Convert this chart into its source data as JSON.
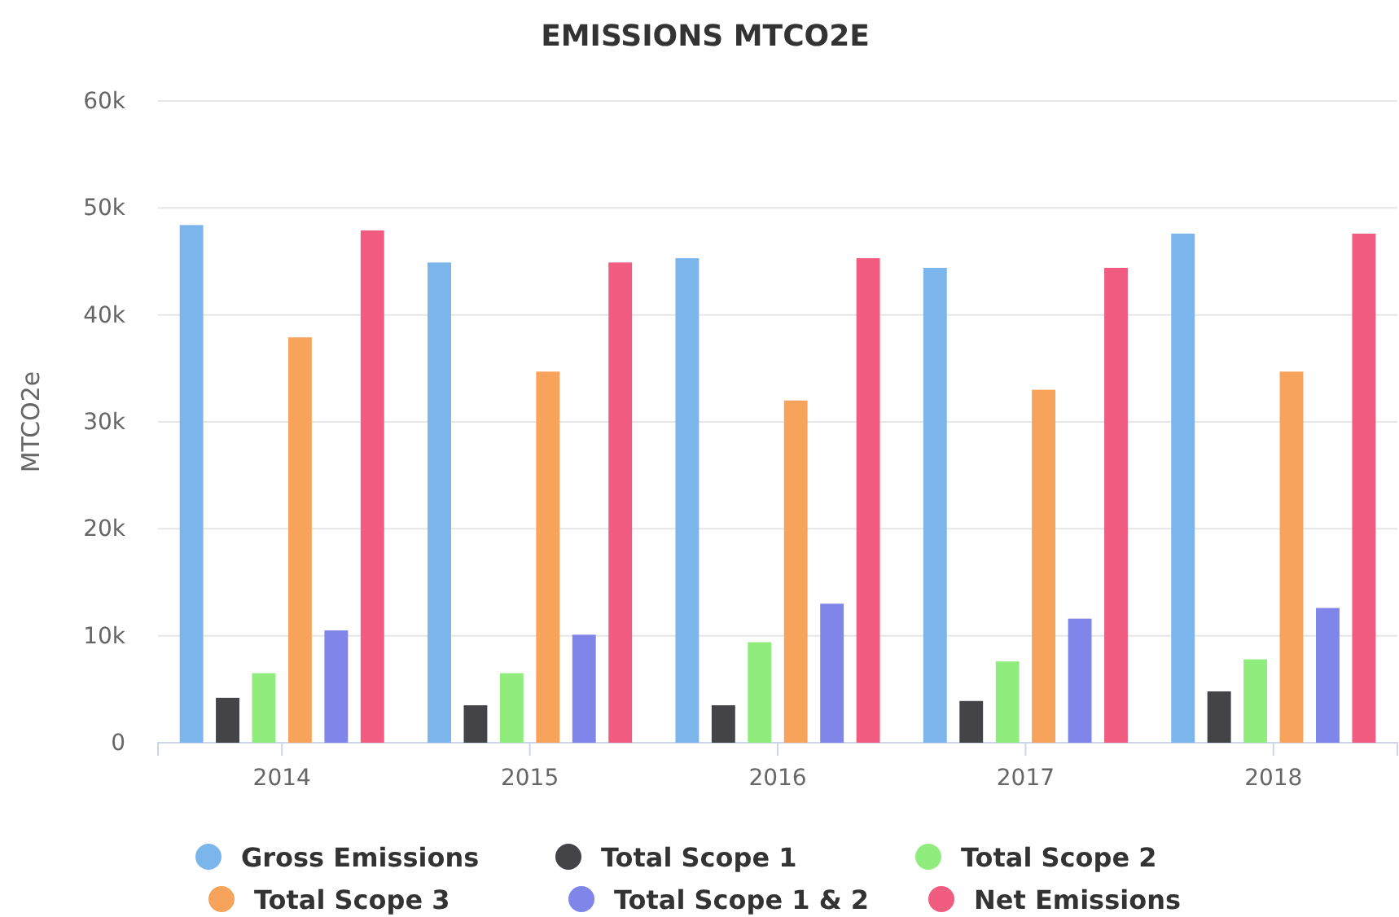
{
  "chart_data": {
    "type": "bar",
    "title": "EMISSIONS MTCO2E",
    "ylabel": "MTCO2e",
    "categories": [
      "2014",
      "2015",
      "2016",
      "2017",
      "2018"
    ],
    "series": [
      {
        "name": "Gross Emissions",
        "color": "#7cb5ec",
        "values": [
          48400,
          44900,
          45300,
          44400,
          47600
        ]
      },
      {
        "name": "Total Scope 1",
        "color": "#434348",
        "values": [
          4200,
          3500,
          3500,
          3900,
          4800
        ]
      },
      {
        "name": "Total Scope 2",
        "color": "#90ed7d",
        "values": [
          6500,
          6500,
          9400,
          7600,
          7800
        ]
      },
      {
        "name": "Total Scope 3",
        "color": "#f7a35c",
        "values": [
          37900,
          34700,
          32000,
          33000,
          34700
        ]
      },
      {
        "name": "Total Scope 1 & 2",
        "color": "#8085e9",
        "values": [
          10500,
          10100,
          13000,
          11600,
          12600
        ]
      },
      {
        "name": "Net Emissions",
        "color": "#f15c80",
        "values": [
          47900,
          44900,
          45300,
          44400,
          47600
        ]
      }
    ],
    "ylim": [
      0,
      60000
    ],
    "yticks": [
      {
        "value": 0,
        "label": "0"
      },
      {
        "value": 10000,
        "label": "10k"
      },
      {
        "value": 20000,
        "label": "20k"
      },
      {
        "value": 30000,
        "label": "30k"
      },
      {
        "value": 40000,
        "label": "40k"
      },
      {
        "value": 50000,
        "label": "50k"
      },
      {
        "value": 60000,
        "label": "60k"
      }
    ],
    "grid": "y",
    "legend": "bottom"
  }
}
